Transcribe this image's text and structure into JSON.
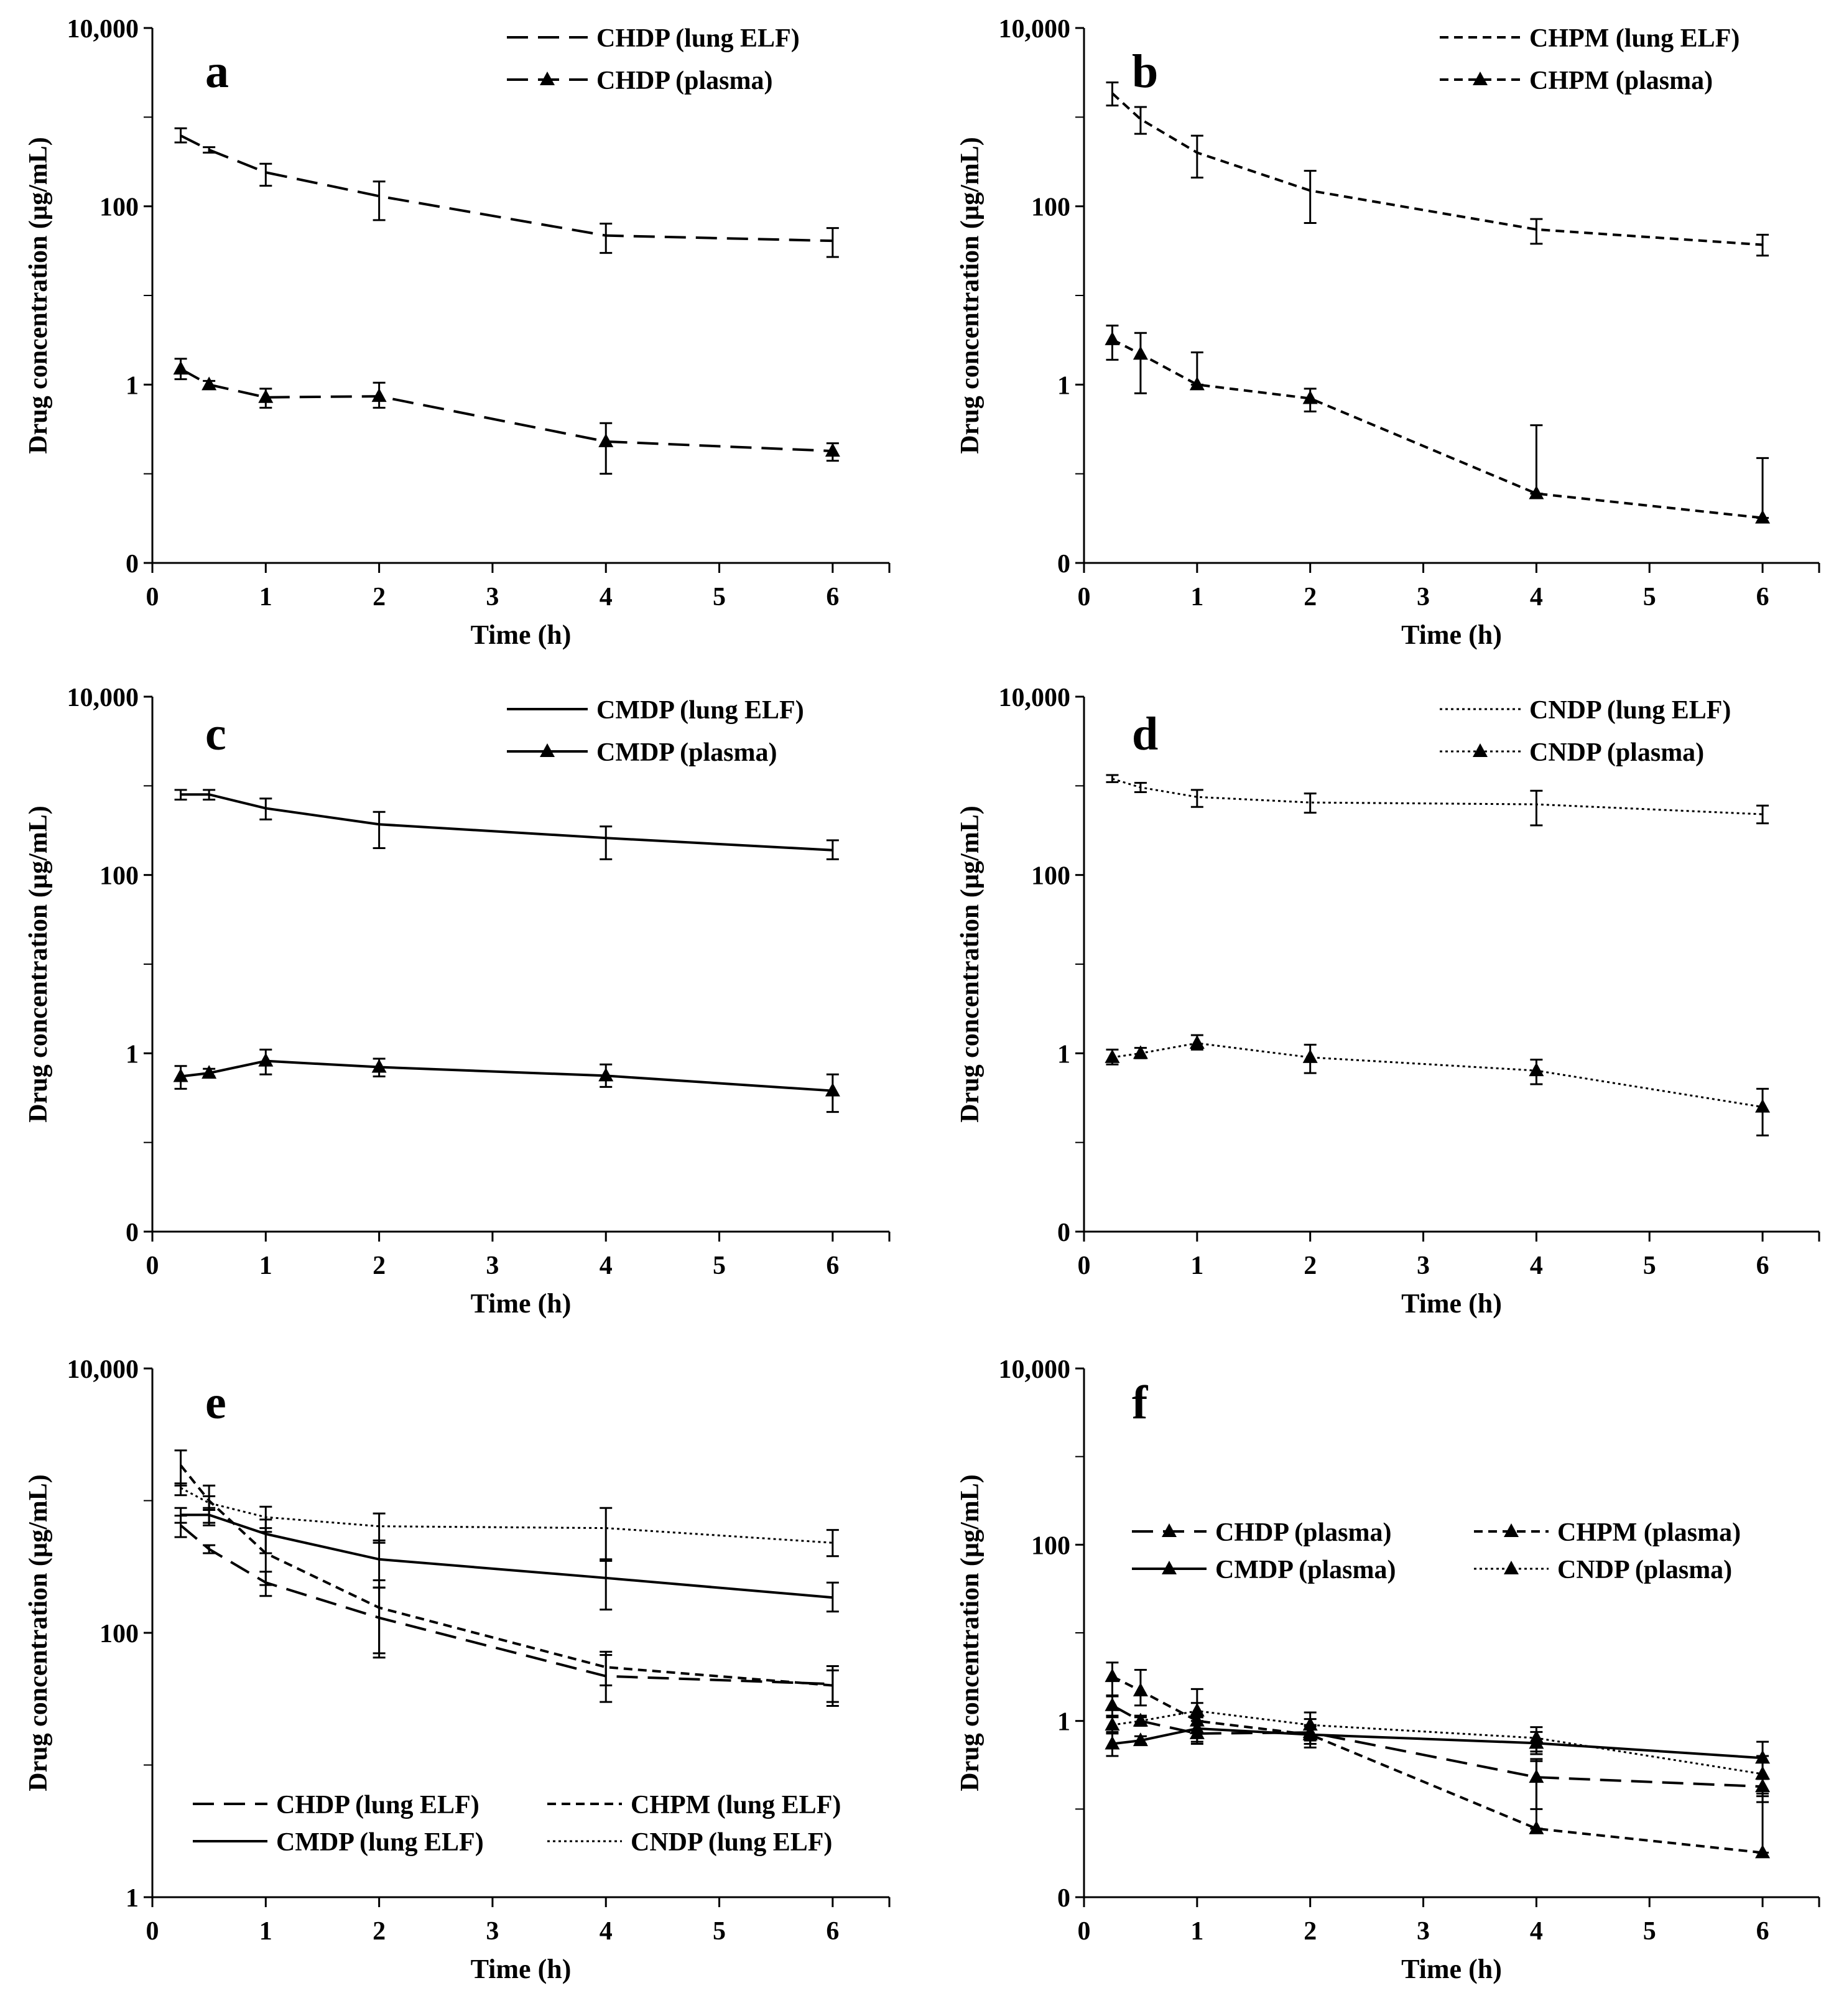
{
  "styles": {
    "CHDP": "longdash",
    "CHPM": "shortdash",
    "CMDP": "solid",
    "CNDP": "dotted"
  },
  "chart_data": [
    {
      "panel": "a",
      "type": "line",
      "xlabel": "Time (h)",
      "ylabel": "Drug concentration (µg/mL)",
      "xticks": [
        "0",
        "1",
        "2",
        "3",
        "4",
        "5",
        "6"
      ],
      "yticks": [
        "0",
        "1",
        "100",
        "10,000"
      ],
      "xlim": [
        0,
        6.5
      ],
      "series": [
        {
          "name": "CHDP (lung ELF)",
          "drug": "CHDP",
          "marker": "none",
          "x": [
            0.25,
            0.5,
            1,
            2,
            4,
            6
          ],
          "y": [
            620,
            430,
            240,
            130,
            47,
            41
          ],
          "err": [
            [
              520,
              750
            ],
            [
              400,
              460
            ],
            [
              170,
              300
            ],
            [
              70,
              190
            ],
            [
              30,
              64
            ],
            [
              27,
              57
            ]
          ]
        },
        {
          "name": "CHDP (plasma)",
          "drug": "CHDP",
          "marker": "triangle",
          "x": [
            0.25,
            0.5,
            1,
            2,
            4,
            6
          ],
          "y": [
            1.5,
            1.0,
            0.72,
            0.74,
            0.23,
            0.18
          ],
          "err": [
            [
              1.15,
              1.95
            ],
            [
              0.9,
              1.1
            ],
            [
              0.55,
              0.9
            ],
            [
              0.55,
              1.05
            ],
            [
              0.1,
              0.37
            ],
            [
              0.14,
              0.22
            ]
          ]
        }
      ]
    },
    {
      "panel": "b",
      "type": "line",
      "xlabel": "Time (h)",
      "ylabel": "Drug concentration (µg/mL)",
      "xticks": [
        "0",
        "1",
        "2",
        "3",
        "4",
        "5",
        "6"
      ],
      "yticks": [
        "0",
        "1",
        "100",
        "10,000"
      ],
      "xlim": [
        0,
        6.5
      ],
      "series": [
        {
          "name": "CHPM (lung ELF)",
          "drug": "CHPM",
          "marker": "none",
          "x": [
            0.25,
            0.5,
            1,
            2,
            4,
            6
          ],
          "y": [
            1850,
            950,
            400,
            150,
            55,
            37
          ],
          "err": [
            [
              1350,
              2450
            ],
            [
              650,
              1300
            ],
            [
              210,
              620
            ],
            [
              65,
              250
            ],
            [
              38,
              72
            ],
            [
              28,
              48
            ]
          ]
        },
        {
          "name": "CHPM (plasma)",
          "drug": "CHPM",
          "marker": "triangle",
          "x": [
            0.25,
            0.5,
            1,
            2,
            4,
            6
          ],
          "y": [
            3.2,
            2.2,
            1.0,
            0.7,
            0.06,
            0.032
          ],
          "err": [
            [
              1.9,
              4.6
            ],
            [
              0.8,
              3.8
            ],
            [
              1.0,
              2.3
            ],
            [
              0.5,
              0.9
            ],
            [
              0.06,
              0.35
            ],
            [
              0.032,
              0.15
            ]
          ]
        }
      ]
    },
    {
      "panel": "c",
      "type": "line",
      "xlabel": "Time (h)",
      "ylabel": "Drug concentration (µg/mL)",
      "xticks": [
        "0",
        "1",
        "2",
        "3",
        "4",
        "5",
        "6"
      ],
      "yticks": [
        "0",
        "1",
        "100",
        "10,000"
      ],
      "xlim": [
        0,
        6.5
      ],
      "series": [
        {
          "name": "CMDP (lung ELF)",
          "drug": "CMDP",
          "marker": "none",
          "x": [
            0.25,
            0.5,
            1,
            2,
            4,
            6
          ],
          "y": [
            800,
            800,
            560,
            370,
            260,
            190
          ],
          "err": [
            [
              700,
              900
            ],
            [
              700,
              900
            ],
            [
              420,
              720
            ],
            [
              200,
              510
            ],
            [
              150,
              350
            ],
            [
              150,
              245
            ]
          ]
        },
        {
          "name": "CMDP (plasma)",
          "drug": "CMDP",
          "marker": "triangle",
          "x": [
            0.25,
            0.5,
            1,
            2,
            4,
            6
          ],
          "y": [
            0.55,
            0.6,
            0.82,
            0.7,
            0.56,
            0.38
          ],
          "err": [
            [
              0.4,
              0.72
            ],
            [
              0.55,
              0.67
            ],
            [
              0.58,
              1.1
            ],
            [
              0.55,
              0.87
            ],
            [
              0.42,
              0.75
            ],
            [
              0.22,
              0.58
            ]
          ]
        }
      ]
    },
    {
      "panel": "d",
      "type": "line",
      "xlabel": "Time (h)",
      "ylabel": "Drug concentration (µg/mL)",
      "xticks": [
        "0",
        "1",
        "2",
        "3",
        "4",
        "5",
        "6"
      ],
      "yticks": [
        "0",
        "1",
        "100",
        "10,000"
      ],
      "xlim": [
        0,
        6.5
      ],
      "series": [
        {
          "name": "CNDP (lung ELF)",
          "drug": "CNDP",
          "marker": "none",
          "x": [
            0.25,
            0.5,
            1,
            2,
            4,
            6
          ],
          "y": [
            1200,
            960,
            750,
            650,
            620,
            480
          ],
          "err": [
            [
              1100,
              1320
            ],
            [
              850,
              1080
            ],
            [
              580,
              900
            ],
            [
              500,
              820
            ],
            [
              360,
              880
            ],
            [
              380,
              600
            ]
          ]
        },
        {
          "name": "CNDP (plasma)",
          "drug": "CNDP",
          "marker": "triangle",
          "x": [
            0.25,
            0.5,
            1,
            2,
            4,
            6
          ],
          "y": [
            0.9,
            1.0,
            1.3,
            0.9,
            0.64,
            0.25
          ],
          "err": [
            [
              0.75,
              1.1
            ],
            [
              0.88,
              1.15
            ],
            [
              1.1,
              1.6
            ],
            [
              0.6,
              1.25
            ],
            [
              0.45,
              0.85
            ],
            [
              0.12,
              0.4
            ]
          ]
        }
      ]
    },
    {
      "panel": "e",
      "type": "line",
      "xlabel": "Time (h)",
      "ylabel": "Drug concentration (µg/mL)",
      "xticks": [
        "0",
        "1",
        "2",
        "3",
        "4",
        "5",
        "6"
      ],
      "yticks": [
        "1",
        "100",
        "10,000"
      ],
      "xlim": [
        0,
        6.5
      ],
      "series": [
        {
          "name": "CHDP (lung ELF)",
          "drug": "CHDP",
          "marker": "none",
          "x": [
            0.25,
            0.5,
            1,
            2,
            4,
            6
          ],
          "y": [
            650,
            430,
            240,
            130,
            47,
            41
          ],
          "err": [
            [
              530,
              770
            ],
            [
              400,
              460
            ],
            [
              190,
              290
            ],
            [
              70,
              220
            ],
            [
              30,
              68
            ],
            [
              28,
              56
            ]
          ]
        },
        {
          "name": "CHPM (lung ELF)",
          "drug": "CHPM",
          "marker": "none",
          "x": [
            0.25,
            0.5,
            1,
            2,
            4,
            6
          ],
          "y": [
            1850,
            1000,
            400,
            155,
            55,
            40
          ],
          "err": [
            [
              1300,
              2400
            ],
            [
              650,
              1300
            ],
            [
              230,
              620
            ],
            [
              65,
              250
            ],
            [
              40,
              72
            ],
            [
              30,
              52
            ]
          ]
        },
        {
          "name": "CMDP (lung ELF)",
          "drug": "CMDP",
          "marker": "none",
          "x": [
            0.25,
            0.5,
            1,
            2,
            4,
            6
          ],
          "y": [
            780,
            780,
            560,
            360,
            260,
            185
          ],
          "err": [
            [
              680,
              880
            ],
            [
              680,
              880
            ],
            [
              400,
              720
            ],
            [
              220,
              500
            ],
            [
              150,
              350
            ],
            [
              145,
              240
            ]
          ]
        },
        {
          "name": "CNDP (lung ELF)",
          "drug": "CNDP",
          "marker": "none",
          "x": [
            0.25,
            0.5,
            1,
            2,
            4,
            6
          ],
          "y": [
            1250,
            960,
            750,
            640,
            620,
            480
          ],
          "err": [
            [
              1100,
              1350
            ],
            [
              850,
              1080
            ],
            [
              580,
              900
            ],
            [
              480,
              800
            ],
            [
              360,
              880
            ],
            [
              380,
              600
            ]
          ]
        }
      ]
    },
    {
      "panel": "f",
      "type": "line",
      "xlabel": "Time (h)",
      "ylabel": "Drug concentration (µg/mL)",
      "xticks": [
        "0",
        "1",
        "2",
        "3",
        "4",
        "5",
        "6"
      ],
      "yticks": [
        "0",
        "1",
        "100",
        "10,000"
      ],
      "xlim": [
        0,
        6.5
      ],
      "series": [
        {
          "name": "CHDP (plasma)",
          "drug": "CHDP",
          "marker": "triangle",
          "x": [
            0.25,
            0.5,
            1,
            2,
            4,
            6
          ],
          "y": [
            1.5,
            1.0,
            0.72,
            0.74,
            0.23,
            0.18
          ],
          "err": [
            [
              1.15,
              1.95
            ],
            [
              0.9,
              1.1
            ],
            [
              0.55,
              0.9
            ],
            [
              0.55,
              1.05
            ],
            [
              0.1,
              0.37
            ],
            [
              0.14,
              0.22
            ]
          ]
        },
        {
          "name": "CHPM (plasma)",
          "drug": "CHPM",
          "marker": "triangle",
          "x": [
            0.25,
            0.5,
            1,
            2,
            4,
            6
          ],
          "y": [
            3.2,
            2.2,
            1.0,
            0.7,
            0.06,
            0.032
          ],
          "err": [
            [
              1.9,
              4.6
            ],
            [
              1.5,
              3.8
            ],
            [
              1.0,
              2.3
            ],
            [
              0.5,
              0.9
            ],
            [
              0.06,
              0.35
            ],
            [
              0.032,
              0.15
            ]
          ]
        },
        {
          "name": "CMDP (plasma)",
          "drug": "CMDP",
          "marker": "triangle",
          "x": [
            0.25,
            0.5,
            1,
            2,
            4,
            6
          ],
          "y": [
            0.55,
            0.6,
            0.82,
            0.7,
            0.56,
            0.38
          ],
          "err": [
            [
              0.4,
              0.72
            ],
            [
              0.55,
              0.67
            ],
            [
              0.58,
              1.1
            ],
            [
              0.55,
              0.87
            ],
            [
              0.42,
              0.75
            ],
            [
              0.22,
              0.58
            ]
          ]
        },
        {
          "name": "CNDP (plasma)",
          "drug": "CNDP",
          "marker": "triangle",
          "x": [
            0.25,
            0.5,
            1,
            2,
            4,
            6
          ],
          "y": [
            0.9,
            1.0,
            1.3,
            0.9,
            0.64,
            0.25
          ],
          "err": [
            [
              0.75,
              1.1
            ],
            [
              0.88,
              1.15
            ],
            [
              1.1,
              1.6
            ],
            [
              0.6,
              1.25
            ],
            [
              0.45,
              0.85
            ],
            [
              0.12,
              0.4
            ]
          ]
        }
      ]
    }
  ]
}
